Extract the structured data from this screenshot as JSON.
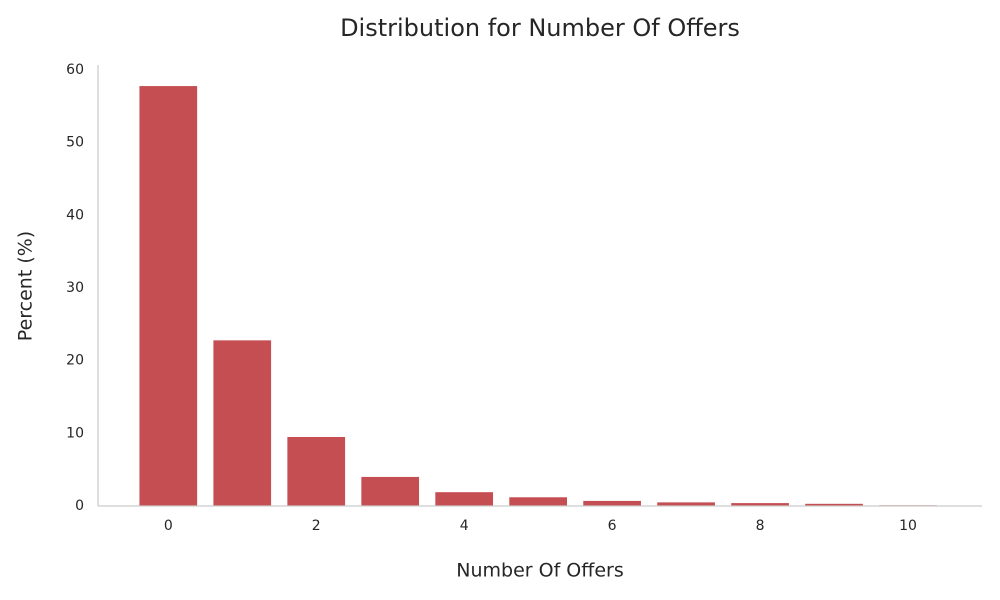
{
  "chart_data": {
    "type": "bar",
    "title": "Distribution for Number Of Offers",
    "x_label": "Number Of Offers",
    "y_label": "Percent (%)",
    "x": [
      0,
      1,
      2,
      3,
      4,
      5,
      6,
      7,
      8,
      9,
      10
    ],
    "values": [
      57.8,
      22.8,
      9.5,
      4.0,
      1.9,
      1.2,
      0.7,
      0.5,
      0.4,
      0.3,
      0.1
    ],
    "color": "#c44e52",
    "xlim": [
      -0.95,
      11
    ],
    "xticks": [
      0,
      2,
      4,
      6,
      8,
      10
    ],
    "ylim": [
      0,
      60.7
    ],
    "yticks": [
      0,
      10,
      20,
      30,
      40,
      50,
      60
    ],
    "grid": false
  }
}
